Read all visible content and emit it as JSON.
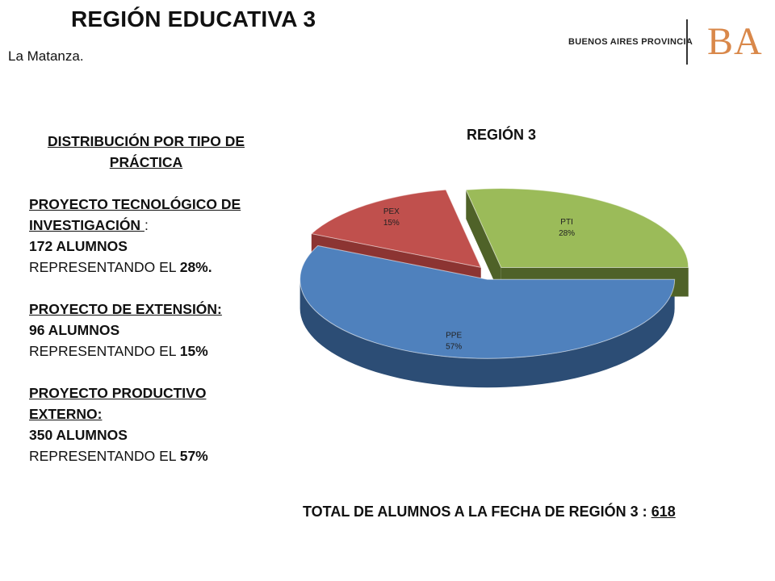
{
  "header": {
    "title": "REGIÓN EDUCATIVA 3",
    "subtitle": "La Matanza.",
    "brand_text": "BUENOS AIRES PROVINCIA",
    "brand_logo": "BA"
  },
  "panel": {
    "heading_line1": "DISTRIBUCIÓN POR TIPO DE",
    "heading_line2": "PRÁCTICA",
    "items": [
      {
        "name_line1": "PROYECTO TECNOLÓGICO DE",
        "name_line2": "INVESTIGACIÓN ",
        "name_suffix": ":",
        "count": "172 ALUMNOS",
        "rep_prefix": "REPRESENTANDO EL ",
        "rep_value": "28%."
      },
      {
        "name_line1": "PROYECTO DE EXTENSIÓN:",
        "count": "96 ALUMNOS",
        "rep_prefix": "REPRESENTANDO EL ",
        "rep_value": "15%"
      },
      {
        "name_line1": "PROYECTO PRODUCTIVO",
        "name_line2": "EXTERNO:",
        "count": "350 ALUMNOS",
        "rep_prefix": "REPRESENTANDO EL ",
        "rep_value": "57%"
      }
    ]
  },
  "total": {
    "label": "TOTAL DE ALUMNOS A LA FECHA DE REGIÓN  3 : ",
    "value": "618"
  },
  "chart_data": {
    "type": "pie",
    "title": "REGIÓN 3",
    "style": "3d-exploded",
    "slices": [
      {
        "label": "PPE",
        "value": 57,
        "display": "57%",
        "color": "#4f81bd",
        "side_color": "#2c4d75"
      },
      {
        "label": "PEX",
        "value": 15,
        "display": "15%",
        "color": "#c0504d",
        "side_color": "#8c3432"
      },
      {
        "label": "PTI",
        "value": 28,
        "display": "28%",
        "color": "#9bbb59",
        "side_color": "#4f6228"
      }
    ]
  }
}
